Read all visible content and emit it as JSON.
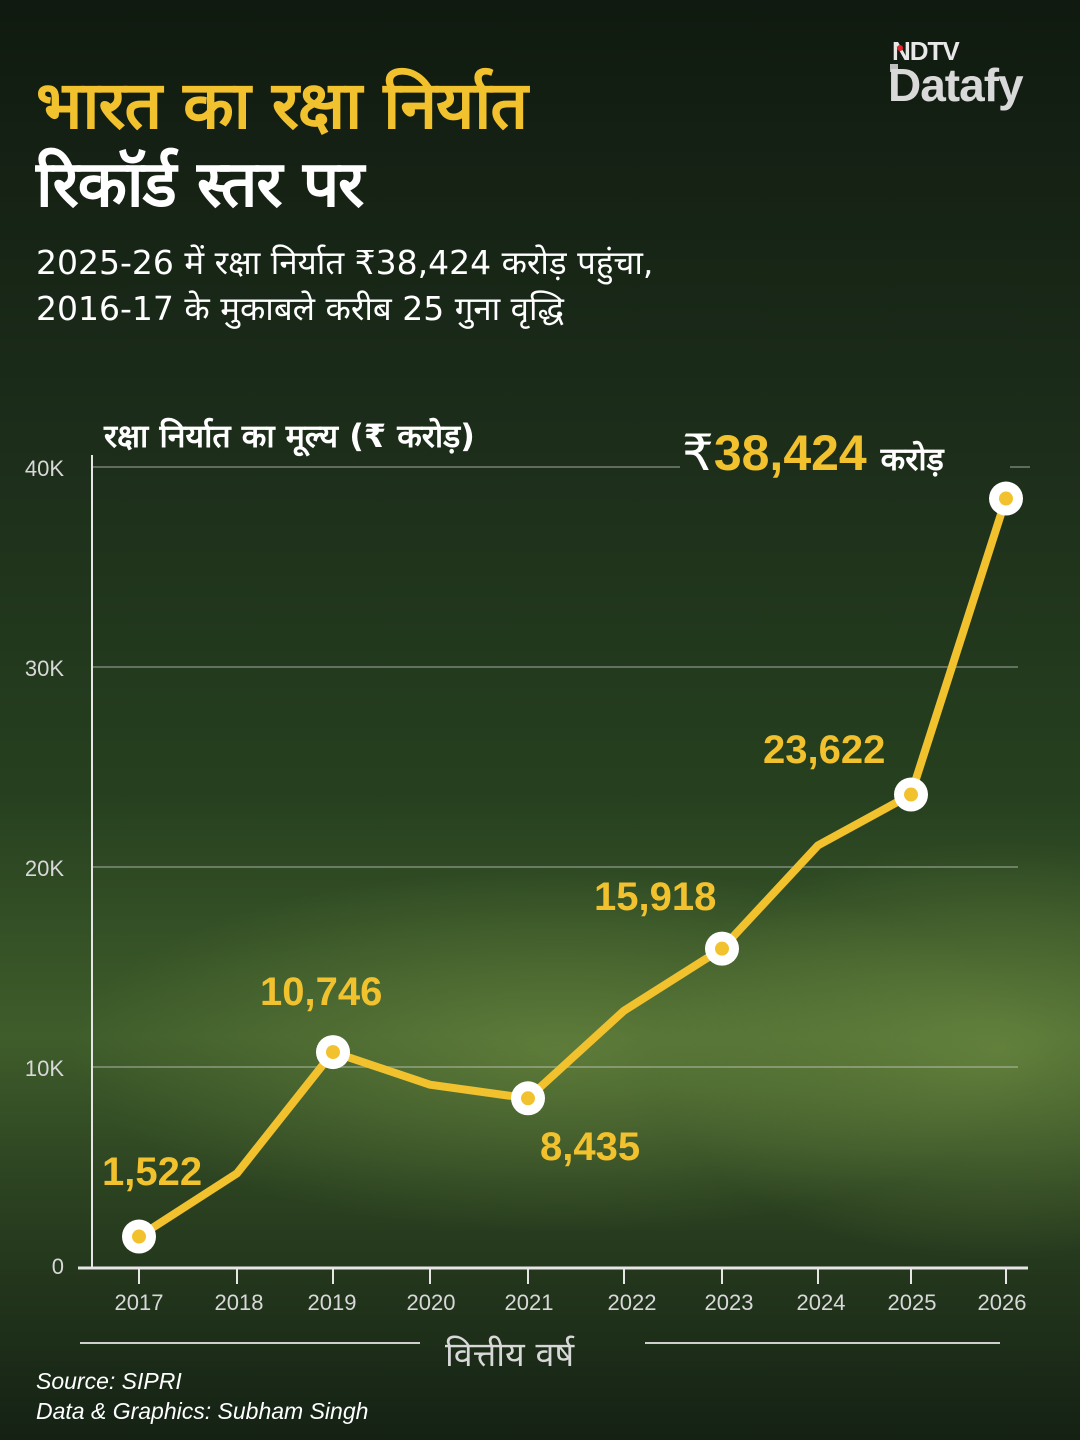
{
  "header": {
    "title_line1": "भारत का रक्षा निर्यात",
    "title_line2": "रिकॉर्ड स्तर पर",
    "subtitle_line1": "2025-26 में रक्षा निर्यात ₹38,424 करोड़ पहुंचा,",
    "subtitle_line2": "2016-17 के मुकाबले करीब 25 गुना वृद्धि"
  },
  "logo": {
    "top": "NDTV",
    "bottom": "Datafy"
  },
  "highlight": {
    "currency": "₹",
    "value": "38,424",
    "unit": "करोड़"
  },
  "colors": {
    "accent": "#f2c12e",
    "background": "#1c2d1a",
    "text": "#ffffff",
    "logo_red": "#e3262b"
  },
  "footer": {
    "source": "Source: SIPRI",
    "credit": "Data & Graphics: Subham Singh"
  },
  "chart_data": {
    "type": "line",
    "title": "भारत का रक्षा निर्यात रिकॉर्ड स्तर पर",
    "ylabel": "रक्षा निर्यात का मूल्य (₹ करोड़)",
    "xlabel": "वित्तीय वर्ष",
    "categories": [
      "2017",
      "2018",
      "2019",
      "2020",
      "2021",
      "2022",
      "2023",
      "2024",
      "2025",
      "2026"
    ],
    "values": [
      1522,
      4682,
      10746,
      9116,
      8435,
      12815,
      15918,
      21083,
      23622,
      38424
    ],
    "data_labels": [
      "1,522",
      null,
      "10,746",
      null,
      "8,435",
      null,
      "15,918",
      null,
      "23,622",
      "₹38,424 करोड़"
    ],
    "y_ticks": [
      "0",
      "10K",
      "20K",
      "30K",
      "40K"
    ],
    "ylim": [
      0,
      40000
    ],
    "grid": true,
    "legend": null
  }
}
